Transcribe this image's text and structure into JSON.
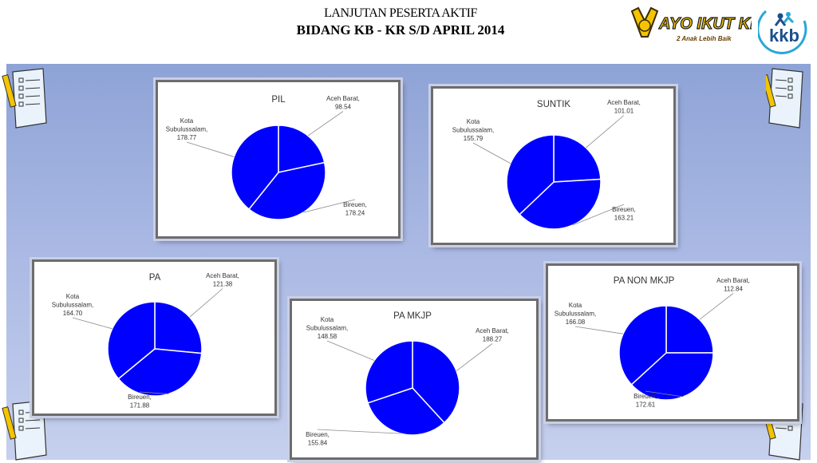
{
  "header": {
    "title_line1": "LANJUTAN PESERTA  AKTIF",
    "title_line2": "BIDANG KB - KR S/D  APRIL 2014"
  },
  "logos": {
    "ayo_text": "AYO IKUT KB",
    "ayo_tagline": "2 Anak Lebih Baik",
    "kkb_text": "kkb"
  },
  "colors": {
    "slice": "#0000ff",
    "slice_border": "#ffffff",
    "accent_yellow": "#f5c400"
  },
  "chart_data": [
    {
      "type": "pie",
      "title": "PIL",
      "slices": [
        {
          "name": "Aceh Barat",
          "value": 98.54,
          "label_line1": "Aceh Barat,",
          "label_line2": "98.54"
        },
        {
          "name": "Bireuen",
          "value": 178.24,
          "label_line1": "Bireuen,",
          "label_line2": "178.24"
        },
        {
          "name": "Kota Subulussalam",
          "value": 178.77,
          "label_line1": "Kota",
          "label_line2": "Subulussalam,",
          "label_line3": "178.77"
        }
      ]
    },
    {
      "type": "pie",
      "title": "SUNTIK",
      "slices": [
        {
          "name": "Aceh Barat",
          "value": 101.01,
          "label_line1": "Aceh Barat,",
          "label_line2": "101.01"
        },
        {
          "name": "Bireuen",
          "value": 163.21,
          "label_line1": "Bireuen,",
          "label_line2": "163.21"
        },
        {
          "name": "Kota Subulussalam",
          "value": 155.79,
          "label_line1": "Kota",
          "label_line2": "Subulussalam,",
          "label_line3": "155.79"
        }
      ]
    },
    {
      "type": "pie",
      "title": "PA",
      "slices": [
        {
          "name": "Aceh Barat",
          "value": 121.38,
          "label_line1": "Aceh Barat,",
          "label_line2": "121.38"
        },
        {
          "name": "Bireuen",
          "value": 171.88,
          "label_line1": "Bireuen,",
          "label_line2": "171.88"
        },
        {
          "name": "Kota Subulussalam",
          "value": 164.7,
          "label_line1": "Kota",
          "label_line2": "Subulussalam,",
          "label_line3": "164.70"
        }
      ]
    },
    {
      "type": "pie",
      "title": "PA  MKJP",
      "slices": [
        {
          "name": "Aceh Barat",
          "value": 188.27,
          "label_line1": "Aceh Barat,",
          "label_line2": "188.27"
        },
        {
          "name": "Bireuen",
          "value": 155.84,
          "label_line1": "Bireuen,",
          "label_line2": "155.84"
        },
        {
          "name": "Kota Subulussalam",
          "value": 148.58,
          "label_line1": "Kota",
          "label_line2": "Subulussalam,",
          "label_line3": "148.58"
        }
      ]
    },
    {
      "type": "pie",
      "title": "PA NON MKJP",
      "slices": [
        {
          "name": "Aceh Barat",
          "value": 112.84,
          "label_line1": "Aceh Barat,",
          "label_line2": "112.84"
        },
        {
          "name": "Bireuen",
          "value": 172.61,
          "label_line1": "Bireuen,",
          "label_line2": "172.61"
        },
        {
          "name": "Kota Subulussalam",
          "value": 166.08,
          "label_line1": "Kota",
          "label_line2": "Subulussalam,",
          "label_line3": "166.08"
        }
      ]
    }
  ]
}
